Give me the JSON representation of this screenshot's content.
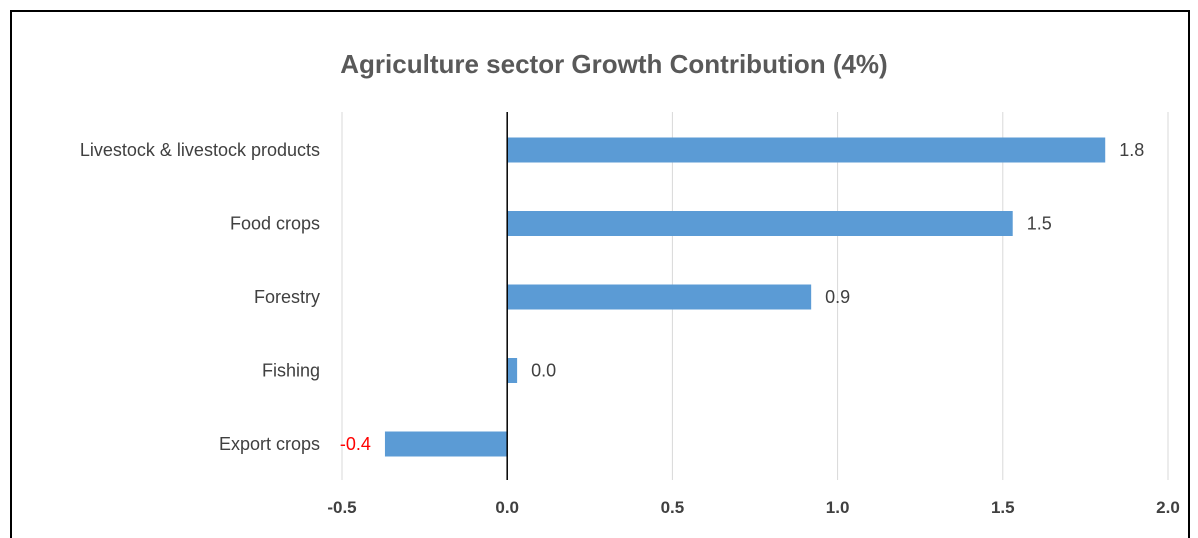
{
  "chart_data": {
    "type": "bar",
    "orientation": "horizontal",
    "title": "Agriculture sector Growth Contribution (4%)",
    "xlabel": "",
    "ylabel": "",
    "categories": [
      "Livestock & livestock products",
      "Food crops",
      "Forestry",
      "Fishing",
      "Export crops"
    ],
    "values": [
      1.81,
      1.53,
      0.92,
      0.03,
      -0.37
    ],
    "data_labels": [
      "1.8",
      "1.5",
      "0.9",
      "0.0",
      "-0.4"
    ],
    "xlim": [
      -0.5,
      2.0
    ],
    "xticks": [
      -0.5,
      0.0,
      0.5,
      1.0,
      1.5,
      2.0
    ],
    "xtick_labels": [
      "-0.5",
      "0.0",
      "0.5",
      "1.0",
      "1.5",
      "2.0"
    ],
    "grid": "vertical",
    "legend": "none",
    "colors": {
      "bar": "#5b9bd5",
      "grid": "#d9d9d9",
      "axis": "#000000",
      "label": "#404040",
      "negative_label": "#ff0000"
    }
  }
}
